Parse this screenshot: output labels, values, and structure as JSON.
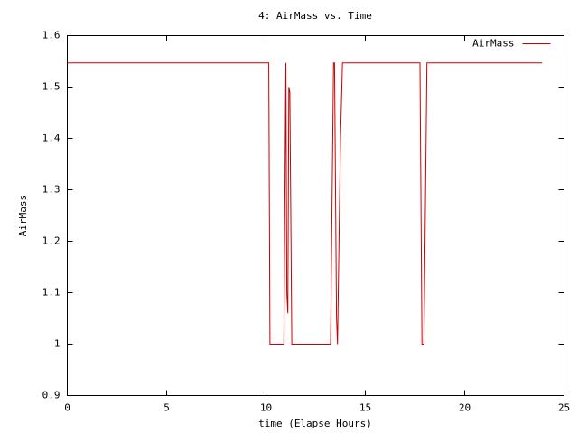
{
  "chart_data": {
    "type": "line",
    "title": "4: AirMass vs. Time",
    "x_label": "time (Elapse Hours)",
    "y_label": "AirMass",
    "x": [
      0,
      10.14,
      10.2,
      10.9,
      11.0,
      11.05,
      11.1,
      11.15,
      11.2,
      11.3,
      13.25,
      13.4,
      13.45,
      13.55,
      13.6,
      13.75,
      13.85,
      17.75,
      17.85,
      17.95,
      18.1,
      23.9
    ],
    "series": [
      {
        "name": "AirMass",
        "color": "#cc0000",
        "values": [
          1.547,
          1.547,
          1.0,
          1.0,
          1.547,
          1.1,
          1.06,
          1.5,
          1.49,
          1.0,
          1.0,
          1.547,
          1.547,
          1.05,
          1.0,
          1.4,
          1.547,
          1.547,
          1.0,
          1.0,
          1.547,
          1.547
        ]
      }
    ],
    "xlim": [
      0,
      25
    ],
    "xticks": [
      0,
      5,
      10,
      15,
      20,
      25
    ],
    "ylim": [
      0.9,
      1.6
    ],
    "yticks": [
      0.9,
      1,
      1.1,
      1.2,
      1.3,
      1.4,
      1.5,
      1.6
    ],
    "grid": false,
    "legend": "top-right"
  }
}
